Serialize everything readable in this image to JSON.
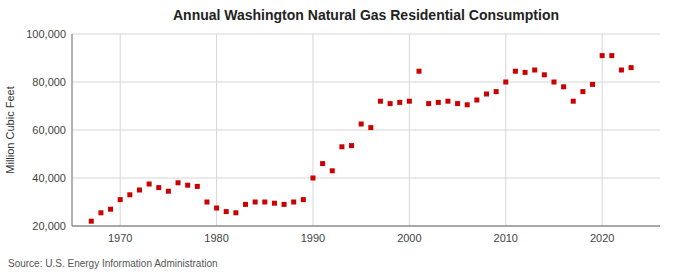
{
  "chart_data": {
    "type": "scatter",
    "title": "Annual Washington Natural Gas Residential Consumption",
    "y_label": "Million Cubic Feet",
    "source": "Source: U.S. Energy Information Administration",
    "x": [
      1967,
      1968,
      1969,
      1970,
      1971,
      1972,
      1973,
      1974,
      1975,
      1976,
      1977,
      1978,
      1979,
      1980,
      1981,
      1982,
      1983,
      1984,
      1985,
      1986,
      1987,
      1988,
      1989,
      1990,
      1991,
      1992,
      1993,
      1994,
      1995,
      1996,
      1997,
      1998,
      1999,
      2000,
      2001,
      2002,
      2003,
      2004,
      2005,
      2006,
      2007,
      2008,
      2009,
      2010,
      2011,
      2012,
      2013,
      2014,
      2015,
      2016,
      2017,
      2018,
      2019,
      2020,
      2021,
      2022,
      2023
    ],
    "values": [
      22000,
      25500,
      27000,
      31000,
      33000,
      35000,
      37500,
      36000,
      34500,
      38000,
      37000,
      36500,
      30000,
      27500,
      26000,
      25500,
      29000,
      30000,
      30000,
      29500,
      29000,
      30000,
      31000,
      40000,
      46000,
      43000,
      53000,
      53500,
      62500,
      61000,
      72000,
      71000,
      71500,
      72000,
      84500,
      71000,
      71500,
      72000,
      71000,
      70500,
      72500,
      75000,
      76000,
      80000,
      84500,
      84000,
      85000,
      83000,
      80000,
      78000,
      72000,
      76000,
      79000,
      91000,
      91000,
      85000,
      86000
    ],
    "color": "#cc0000",
    "marker": "square",
    "xlim": [
      1965,
      2026
    ],
    "ylim": [
      20000,
      100000
    ],
    "xticks": [
      1970,
      1980,
      1990,
      2000,
      2010,
      2020
    ],
    "yticks": [
      {
        "value": 20000,
        "label": "20,000"
      },
      {
        "value": 40000,
        "label": "40,000"
      },
      {
        "value": 60000,
        "label": "60,000"
      },
      {
        "value": 80000,
        "label": "80,000"
      },
      {
        "value": 100000,
        "label": "100,000"
      }
    ],
    "grid": true
  }
}
